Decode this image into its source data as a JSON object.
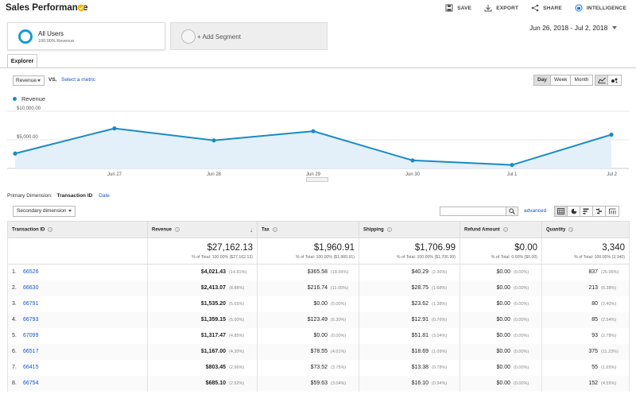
{
  "header": {
    "title": "Sales Performance",
    "actions": [
      {
        "label": "SAVE",
        "icon": "save-icon"
      },
      {
        "label": "EXPORT",
        "icon": "export-icon"
      },
      {
        "label": "SHARE",
        "icon": "share-icon"
      },
      {
        "label": "INTELLIGENCE",
        "icon": "intelligence-icon"
      }
    ]
  },
  "segments": {
    "active": {
      "name": "All Users",
      "sub": "100.00% Revenue"
    },
    "add_label": "+ Add Segment"
  },
  "date_range": "Jun 26, 2018 - Jul 2, 2018",
  "explorer_tab": "Explorer",
  "controls": {
    "metric": "Revenue",
    "vs": "VS.",
    "select_metric": "Select a metric",
    "periods": [
      "Day",
      "Week",
      "Month"
    ],
    "active_period": "Day"
  },
  "colors": {
    "line": "#1a8ac7",
    "fill": "#e3f0fa",
    "link": "#1155cc"
  },
  "chart_data": {
    "type": "area",
    "series": [
      {
        "name": "Revenue",
        "values": [
          2600,
          7000,
          4900,
          6500,
          1400,
          600,
          5900
        ]
      }
    ],
    "x": [
      "Jun 26",
      "Jun 27",
      "Jun 28",
      "Jun 29",
      "Jun 30",
      "Jul 1",
      "Jul 2"
    ],
    "x_tick_labels": [
      "",
      "Jun 27",
      "Jun 28",
      "Jun 29",
      "Jun 30",
      "Jul 1",
      "Jul 2"
    ],
    "y_ticks": [
      {
        "value": 10000,
        "label": "$10,000.00"
      },
      {
        "value": 5000,
        "label": "$5,000.00"
      }
    ],
    "ylim": [
      0,
      10000
    ],
    "grid": true,
    "legend": "top-left"
  },
  "primary_dimension": {
    "label": "Primary Dimension:",
    "active": "Transaction ID",
    "other": "Date"
  },
  "secondary_dimension": "Secondary dimension",
  "advanced_label": "advanced",
  "table": {
    "columns": [
      "Transaction ID",
      "Revenue",
      "Tax",
      "Shipping",
      "Refund Amount",
      "Quantity"
    ],
    "totals": [
      {
        "value": "$27,162.13",
        "pct": "% of Total: 100.00% ($27,162.13)"
      },
      {
        "value": "$1,960.91",
        "pct": "% of Total: 100.00% ($1,960.91)"
      },
      {
        "value": "$1,706.99",
        "pct": "% of Total: 100.00% ($1,706.99)"
      },
      {
        "value": "$0.00",
        "pct": "% of Total: 0.00% ($0.00)"
      },
      {
        "value": "3,340",
        "pct": "% of Total: 100.00% (3,340)"
      }
    ],
    "rows": [
      {
        "n": "1.",
        "id": "66526",
        "rev": "$4,021.43",
        "rev_p": "(14.81%)",
        "tax": "$365.58",
        "tax_p": "(18.64%)",
        "ship": "$40.29",
        "ship_p": "(2.36%)",
        "ref": "$0.00",
        "ref_p": "(0.00%)",
        "qty": "837",
        "qty_p": "(25.06%)"
      },
      {
        "n": "2.",
        "id": "66630",
        "rev": "$2,413.07",
        "rev_p": "(8.88%)",
        "tax": "$216.74",
        "tax_p": "(11.05%)",
        "ship": "$28.75",
        "ship_p": "(1.68%)",
        "ref": "$0.00",
        "ref_p": "(0.00%)",
        "qty": "213",
        "qty_p": "(6.38%)"
      },
      {
        "n": "3.",
        "id": "66791",
        "rev": "$1,535.20",
        "rev_p": "(5.65%)",
        "tax": "$0.00",
        "tax_p": "(0.00%)",
        "ship": "$23.62",
        "ship_p": "(1.38%)",
        "ref": "$0.00",
        "ref_p": "(0.00%)",
        "qty": "80",
        "qty_p": "(2.40%)"
      },
      {
        "n": "4.",
        "id": "66793",
        "rev": "$1,359.15",
        "rev_p": "(5.00%)",
        "tax": "$123.49",
        "tax_p": "(6.30%)",
        "ship": "$12.91",
        "ship_p": "(0.76%)",
        "ref": "$0.00",
        "ref_p": "(0.00%)",
        "qty": "85",
        "qty_p": "(2.54%)"
      },
      {
        "n": "5.",
        "id": "67099",
        "rev": "$1,317.47",
        "rev_p": "(4.85%)",
        "tax": "$0.00",
        "tax_p": "(0.00%)",
        "ship": "$51.81",
        "ship_p": "(3.04%)",
        "ref": "$0.00",
        "ref_p": "(0.00%)",
        "qty": "93",
        "qty_p": "(2.78%)"
      },
      {
        "n": "6.",
        "id": "66517",
        "rev": "$1,167.00",
        "rev_p": "(4.30%)",
        "tax": "$78.55",
        "tax_p": "(4.01%)",
        "ship": "$18.69",
        "ship_p": "(1.09%)",
        "ref": "$0.00",
        "ref_p": "(0.00%)",
        "qty": "375",
        "qty_p": "(11.23%)"
      },
      {
        "n": "7.",
        "id": "66415",
        "rev": "$803.45",
        "rev_p": "(2.96%)",
        "tax": "$73.52",
        "tax_p": "(3.75%)",
        "ship": "$13.38",
        "ship_p": "(0.78%)",
        "ref": "$0.00",
        "ref_p": "(0.00%)",
        "qty": "55",
        "qty_p": "(1.65%)"
      },
      {
        "n": "8.",
        "id": "66754",
        "rev": "$685.10",
        "rev_p": "(2.52%)",
        "tax": "$59.63",
        "tax_p": "(3.04%)",
        "ship": "$16.10",
        "ship_p": "(0.94%)",
        "ref": "$0.00",
        "ref_p": "(0.00%)",
        "qty": "152",
        "qty_p": "(4.55%)"
      }
    ]
  }
}
